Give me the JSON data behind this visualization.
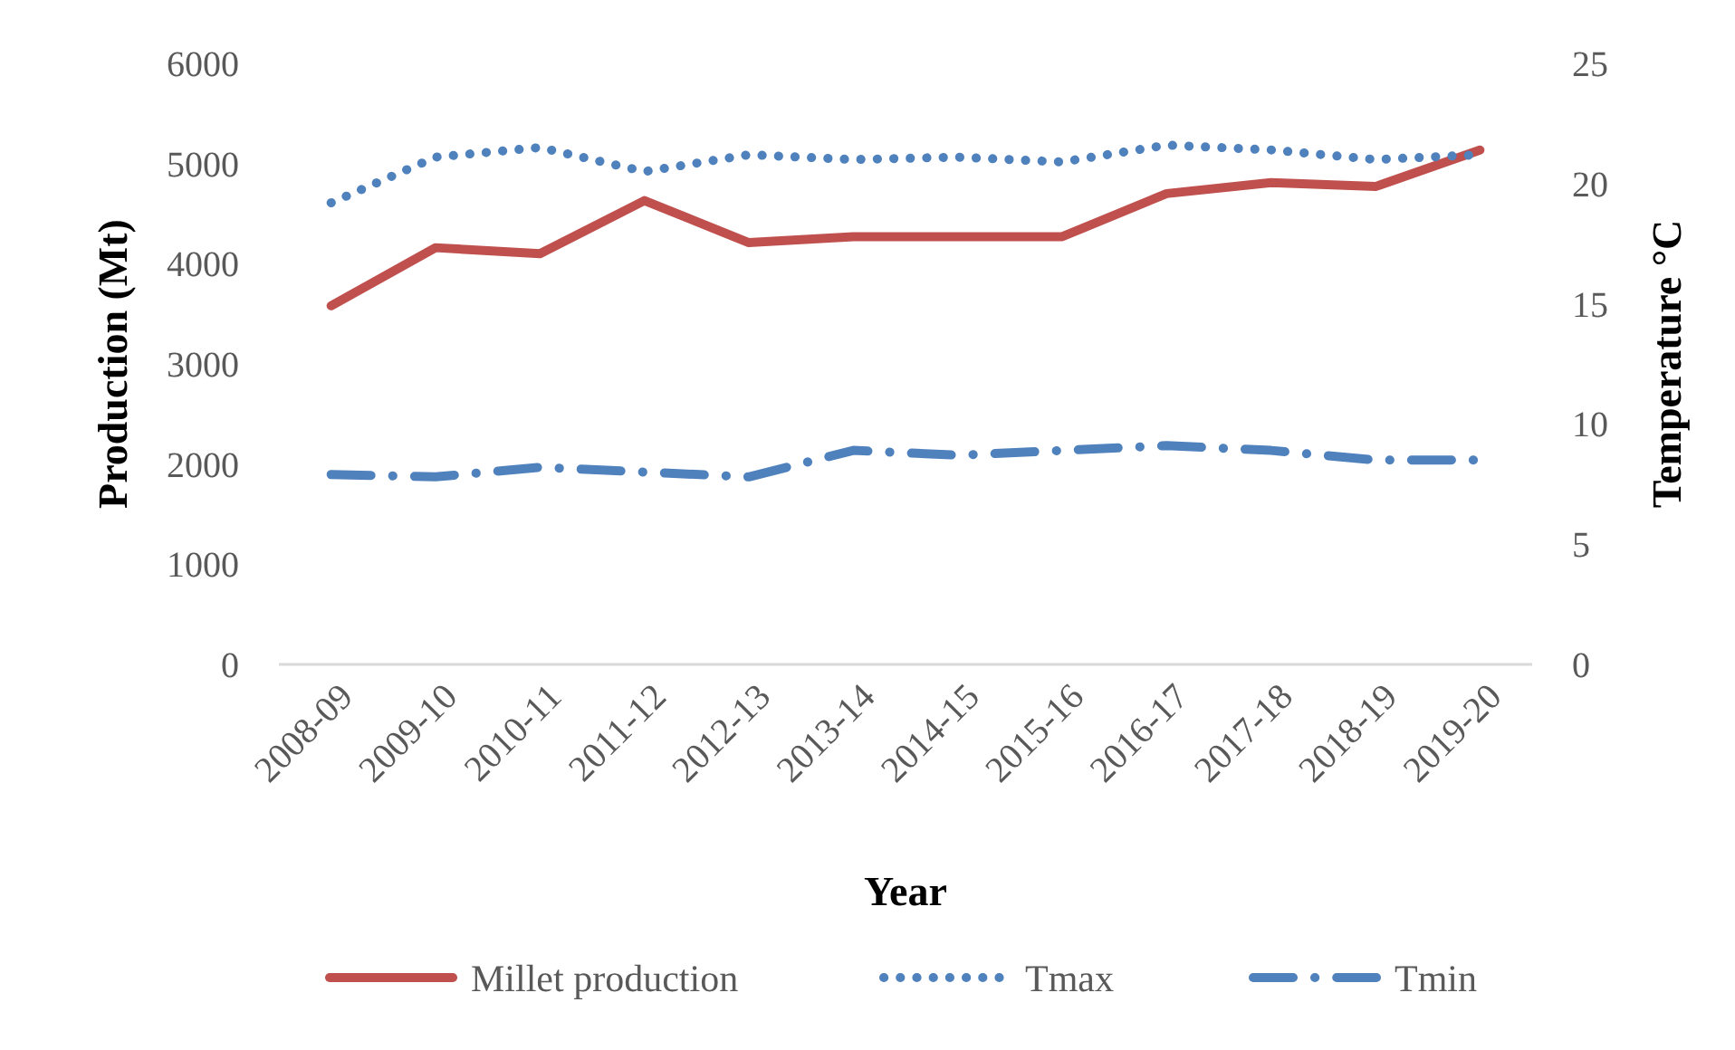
{
  "chart_data": {
    "type": "line",
    "xlabel": "Year",
    "ylabel": "Production (Mt)",
    "y2label": "Temperature °C",
    "categories": [
      "2008-09",
      "2009-10",
      "2010-11",
      "2011-12",
      "2012-13",
      "2013-14",
      "2014-15",
      "2015-16",
      "2016-17",
      "2017-18",
      "2018-19",
      "2019-20"
    ],
    "series": [
      {
        "name": "Millet production",
        "color": "#c0504d",
        "line_style": "solid",
        "values": [
          3580,
          4160,
          4100,
          4630,
          4210,
          4270,
          4270,
          4270,
          4700,
          4810,
          4770,
          5135
        ]
      },
      {
        "name": "Tmax",
        "color": "#4f81bd",
        "line_style": "dotted",
        "axis": "y2",
        "values": [
          19.2,
          21.1,
          21.5,
          20.5,
          21.2,
          21.0,
          21.1,
          20.9,
          21.6,
          21.4,
          21.0,
          21.2
        ]
      },
      {
        "name": "Tmin",
        "color": "#4f81bd",
        "line_style": "dashed",
        "axis": "y2",
        "values": [
          7.9,
          7.8,
          8.2,
          8.0,
          7.8,
          8.9,
          8.7,
          8.9,
          9.1,
          8.9,
          8.5,
          8.5
        ]
      }
    ],
    "ylim": [
      0,
      6000
    ],
    "yticks": [
      0,
      1000,
      2000,
      3000,
      4000,
      5000,
      6000
    ],
    "y2lim": [
      0,
      25
    ],
    "y2ticks": [
      0,
      5,
      10,
      15,
      20,
      25
    ],
    "grid": false,
    "legend": "bottom",
    "marker": "none"
  }
}
